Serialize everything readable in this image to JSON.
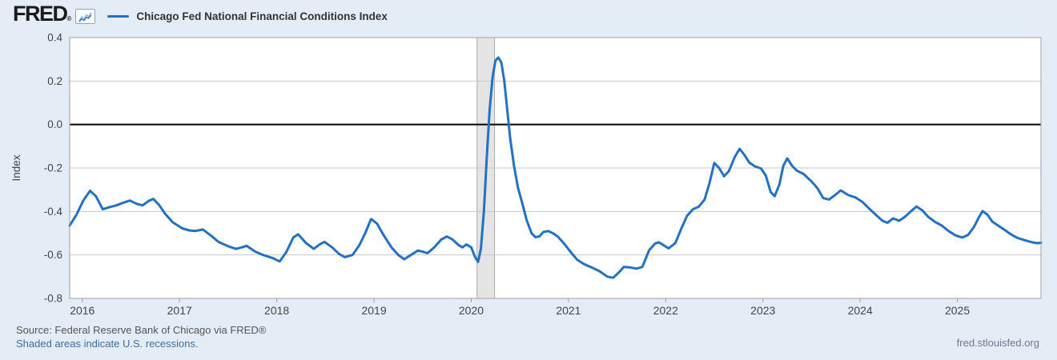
{
  "header": {
    "logo": "FRED",
    "registered_mark": "®",
    "legend_label": "Chicago Fed National Financial Conditions Index"
  },
  "footer": {
    "source": "Source: Federal Reserve Bank of Chicago via FRED®",
    "recession_note": "Shaded areas indicate U.S. recessions.",
    "site": "fred.stlouisfed.org"
  },
  "colors": {
    "background": "#e4edf6",
    "plot_background": "#ffffff",
    "line": "#2271c3",
    "grid": "#c8c8c8",
    "plot_border": "#a0a0a0",
    "zero_line": "#000000",
    "recession_fill": "#e4e4e4",
    "recession_edge": "#ababab",
    "axis_text": "#444444",
    "source_text": "#555555",
    "link_text": "#3b6ea5",
    "site_text": "#6a7a8d"
  },
  "chart_data": {
    "type": "line",
    "title": "Chicago Fed National Financial Conditions Index",
    "xlabel": "",
    "ylabel": "Index",
    "ylim": [
      -0.8,
      0.4
    ],
    "xlim": [
      2015.87,
      2025.86
    ],
    "y_ticks": [
      0.4,
      0.2,
      0.0,
      -0.2,
      -0.4,
      -0.6,
      -0.8
    ],
    "x_ticks": [
      2016,
      2017,
      2018,
      2019,
      2020,
      2021,
      2022,
      2023,
      2024,
      2025
    ],
    "grid": "horizontal",
    "zero_line": 0.0,
    "legend_position": "top-left",
    "recession_band": {
      "start": 2020.06,
      "end": 2020.24,
      "note": "U.S. recession (Feb 2020 - Apr 2020)"
    },
    "series": [
      {
        "name": "Chicago Fed National Financial Conditions Index",
        "points": [
          [
            2015.87,
            -0.465
          ],
          [
            2015.94,
            -0.415
          ],
          [
            2016.01,
            -0.35
          ],
          [
            2016.08,
            -0.305
          ],
          [
            2016.14,
            -0.33
          ],
          [
            2016.21,
            -0.39
          ],
          [
            2016.28,
            -0.38
          ],
          [
            2016.35,
            -0.372
          ],
          [
            2016.42,
            -0.36
          ],
          [
            2016.49,
            -0.35
          ],
          [
            2016.56,
            -0.365
          ],
          [
            2016.62,
            -0.372
          ],
          [
            2016.68,
            -0.352
          ],
          [
            2016.73,
            -0.342
          ],
          [
            2016.79,
            -0.37
          ],
          [
            2016.85,
            -0.41
          ],
          [
            2016.93,
            -0.45
          ],
          [
            2017.03,
            -0.478
          ],
          [
            2017.1,
            -0.487
          ],
          [
            2017.16,
            -0.49
          ],
          [
            2017.24,
            -0.483
          ],
          [
            2017.32,
            -0.51
          ],
          [
            2017.4,
            -0.54
          ],
          [
            2017.5,
            -0.56
          ],
          [
            2017.58,
            -0.572
          ],
          [
            2017.64,
            -0.565
          ],
          [
            2017.69,
            -0.558
          ],
          [
            2017.78,
            -0.585
          ],
          [
            2017.86,
            -0.6
          ],
          [
            2017.96,
            -0.615
          ],
          [
            2018.03,
            -0.63
          ],
          [
            2018.1,
            -0.585
          ],
          [
            2018.17,
            -0.52
          ],
          [
            2018.22,
            -0.505
          ],
          [
            2018.3,
            -0.545
          ],
          [
            2018.38,
            -0.572
          ],
          [
            2018.44,
            -0.552
          ],
          [
            2018.49,
            -0.54
          ],
          [
            2018.57,
            -0.565
          ],
          [
            2018.64,
            -0.595
          ],
          [
            2018.7,
            -0.61
          ],
          [
            2018.78,
            -0.6
          ],
          [
            2018.85,
            -0.555
          ],
          [
            2018.91,
            -0.5
          ],
          [
            2018.97,
            -0.435
          ],
          [
            2019.03,
            -0.455
          ],
          [
            2019.1,
            -0.51
          ],
          [
            2019.18,
            -0.565
          ],
          [
            2019.25,
            -0.6
          ],
          [
            2019.31,
            -0.62
          ],
          [
            2019.38,
            -0.6
          ],
          [
            2019.45,
            -0.58
          ],
          [
            2019.5,
            -0.585
          ],
          [
            2019.55,
            -0.592
          ],
          [
            2019.62,
            -0.565
          ],
          [
            2019.69,
            -0.53
          ],
          [
            2019.75,
            -0.515
          ],
          [
            2019.81,
            -0.53
          ],
          [
            2019.87,
            -0.555
          ],
          [
            2019.91,
            -0.565
          ],
          [
            2019.95,
            -0.552
          ],
          [
            2020.0,
            -0.565
          ],
          [
            2020.04,
            -0.61
          ],
          [
            2020.07,
            -0.632
          ],
          [
            2020.1,
            -0.57
          ],
          [
            2020.13,
            -0.4
          ],
          [
            2020.16,
            -0.15
          ],
          [
            2020.19,
            0.07
          ],
          [
            2020.22,
            0.22
          ],
          [
            2020.25,
            0.295
          ],
          [
            2020.28,
            0.308
          ],
          [
            2020.31,
            0.285
          ],
          [
            2020.34,
            0.2
          ],
          [
            2020.37,
            0.07
          ],
          [
            2020.4,
            -0.06
          ],
          [
            2020.44,
            -0.19
          ],
          [
            2020.48,
            -0.29
          ],
          [
            2020.53,
            -0.37
          ],
          [
            2020.57,
            -0.44
          ],
          [
            2020.62,
            -0.5
          ],
          [
            2020.66,
            -0.518
          ],
          [
            2020.7,
            -0.515
          ],
          [
            2020.74,
            -0.495
          ],
          [
            2020.79,
            -0.49
          ],
          [
            2020.84,
            -0.5
          ],
          [
            2020.89,
            -0.515
          ],
          [
            2020.95,
            -0.545
          ],
          [
            2021.02,
            -0.585
          ],
          [
            2021.09,
            -0.622
          ],
          [
            2021.16,
            -0.642
          ],
          [
            2021.24,
            -0.658
          ],
          [
            2021.32,
            -0.675
          ],
          [
            2021.4,
            -0.7
          ],
          [
            2021.46,
            -0.705
          ],
          [
            2021.52,
            -0.68
          ],
          [
            2021.57,
            -0.655
          ],
          [
            2021.63,
            -0.657
          ],
          [
            2021.7,
            -0.663
          ],
          [
            2021.76,
            -0.655
          ],
          [
            2021.83,
            -0.578
          ],
          [
            2021.89,
            -0.548
          ],
          [
            2021.93,
            -0.542
          ],
          [
            2021.98,
            -0.556
          ],
          [
            2022.03,
            -0.57
          ],
          [
            2022.1,
            -0.545
          ],
          [
            2022.16,
            -0.48
          ],
          [
            2022.22,
            -0.42
          ],
          [
            2022.28,
            -0.39
          ],
          [
            2022.34,
            -0.378
          ],
          [
            2022.4,
            -0.345
          ],
          [
            2022.45,
            -0.27
          ],
          [
            2022.5,
            -0.177
          ],
          [
            2022.55,
            -0.2
          ],
          [
            2022.6,
            -0.238
          ],
          [
            2022.65,
            -0.215
          ],
          [
            2022.71,
            -0.15
          ],
          [
            2022.76,
            -0.112
          ],
          [
            2022.81,
            -0.14
          ],
          [
            2022.86,
            -0.175
          ],
          [
            2022.92,
            -0.193
          ],
          [
            2022.98,
            -0.202
          ],
          [
            2023.03,
            -0.235
          ],
          [
            2023.08,
            -0.31
          ],
          [
            2023.12,
            -0.33
          ],
          [
            2023.17,
            -0.275
          ],
          [
            2023.21,
            -0.19
          ],
          [
            2023.25,
            -0.156
          ],
          [
            2023.3,
            -0.19
          ],
          [
            2023.35,
            -0.212
          ],
          [
            2023.42,
            -0.228
          ],
          [
            2023.5,
            -0.262
          ],
          [
            2023.56,
            -0.292
          ],
          [
            2023.62,
            -0.338
          ],
          [
            2023.68,
            -0.345
          ],
          [
            2023.74,
            -0.325
          ],
          [
            2023.8,
            -0.303
          ],
          [
            2023.88,
            -0.325
          ],
          [
            2023.95,
            -0.335
          ],
          [
            2024.02,
            -0.355
          ],
          [
            2024.09,
            -0.385
          ],
          [
            2024.16,
            -0.415
          ],
          [
            2024.23,
            -0.443
          ],
          [
            2024.28,
            -0.452
          ],
          [
            2024.34,
            -0.432
          ],
          [
            2024.4,
            -0.443
          ],
          [
            2024.46,
            -0.425
          ],
          [
            2024.52,
            -0.4
          ],
          [
            2024.58,
            -0.377
          ],
          [
            2024.64,
            -0.395
          ],
          [
            2024.7,
            -0.425
          ],
          [
            2024.77,
            -0.448
          ],
          [
            2024.84,
            -0.465
          ],
          [
            2024.91,
            -0.49
          ],
          [
            2024.98,
            -0.51
          ],
          [
            2025.05,
            -0.52
          ],
          [
            2025.11,
            -0.508
          ],
          [
            2025.17,
            -0.472
          ],
          [
            2025.22,
            -0.428
          ],
          [
            2025.26,
            -0.398
          ],
          [
            2025.31,
            -0.415
          ],
          [
            2025.36,
            -0.447
          ],
          [
            2025.42,
            -0.465
          ],
          [
            2025.48,
            -0.483
          ],
          [
            2025.55,
            -0.505
          ],
          [
            2025.62,
            -0.522
          ],
          [
            2025.69,
            -0.532
          ],
          [
            2025.76,
            -0.541
          ],
          [
            2025.82,
            -0.546
          ],
          [
            2025.86,
            -0.544
          ]
        ]
      }
    ]
  }
}
